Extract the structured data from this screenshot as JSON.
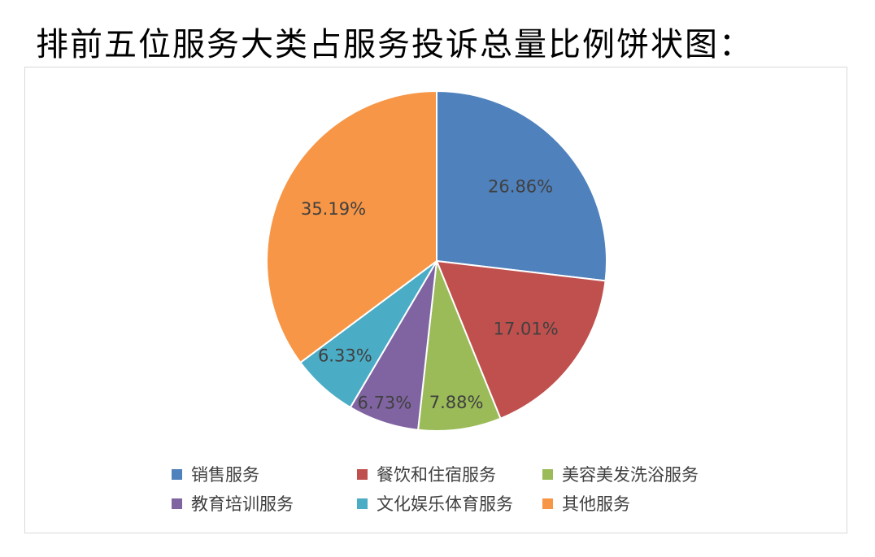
{
  "title": "排前五位服务大类占服务投诉总量比例饼状图：",
  "chart_data": {
    "type": "pie",
    "categories": [
      "销售服务",
      "餐饮和住宿服务",
      "美容美发洗浴服务",
      "教育培训服务",
      "文化娱乐体育服务",
      "其他服务"
    ],
    "values": [
      26.86,
      17.01,
      7.88,
      6.73,
      6.33,
      35.19
    ],
    "value_labels": [
      "26.86%",
      "17.01%",
      "7.88%",
      "6.73%",
      "6.33%",
      "35.19%"
    ],
    "colors": [
      "#4F81BD",
      "#C0504D",
      "#9BBB59",
      "#8064A2",
      "#4BACC6",
      "#F79646"
    ],
    "legend_position": "bottom",
    "start_angle": "12 o'clock",
    "direction": "clockwise"
  }
}
